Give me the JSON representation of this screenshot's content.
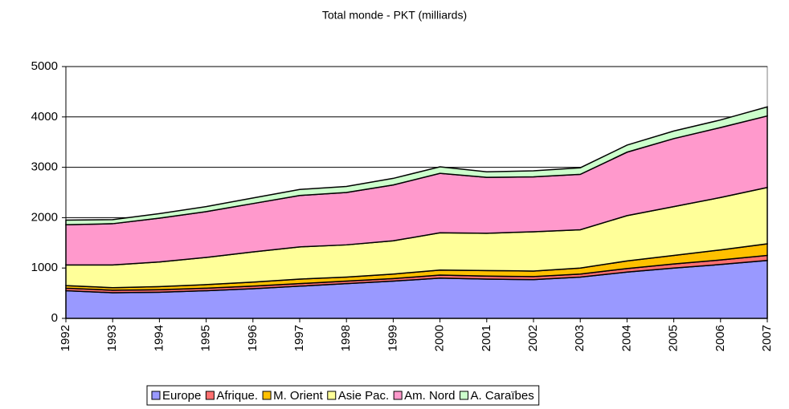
{
  "chart_data": {
    "type": "stacked_area",
    "title": "Total monde - PKT (milliards)",
    "categories": [
      "1992",
      "1993",
      "1994",
      "1995",
      "1996",
      "1997",
      "1998",
      "1999",
      "2000",
      "2001",
      "2002",
      "2003",
      "2004",
      "2005",
      "2006",
      "2007"
    ],
    "series": [
      {
        "name": "Europe",
        "color": "#9999ff",
        "values": [
          550,
          510,
          520,
          550,
          590,
          640,
          690,
          740,
          800,
          780,
          770,
          820,
          920,
          1000,
          1070,
          1150
        ]
      },
      {
        "name": "Afrique.",
        "color": "#ff7070",
        "values": [
          50,
          50,
          50,
          50,
          50,
          50,
          50,
          50,
          60,
          60,
          60,
          60,
          70,
          80,
          90,
          100
        ]
      },
      {
        "name": "M. Orient",
        "color": "#ffc000",
        "values": [
          50,
          50,
          60,
          70,
          80,
          90,
          80,
          90,
          100,
          110,
          110,
          120,
          150,
          170,
          200,
          230
        ]
      },
      {
        "name": "Asie Pac.",
        "color": "#ffff99",
        "values": [
          410,
          450,
          490,
          540,
          600,
          640,
          640,
          660,
          740,
          740,
          780,
          760,
          900,
          970,
          1040,
          1120
        ]
      },
      {
        "name": "Am. Nord",
        "color": "#ff99cc",
        "values": [
          800,
          820,
          870,
          910,
          960,
          1020,
          1040,
          1110,
          1180,
          1110,
          1090,
          1100,
          1260,
          1350,
          1390,
          1420
        ]
      },
      {
        "name": "A. Caraïbes",
        "color": "#ccffcc",
        "values": [
          90,
          80,
          90,
          100,
          110,
          120,
          120,
          130,
          130,
          110,
          120,
          130,
          140,
          150,
          150,
          180
        ]
      }
    ],
    "ylim": [
      0,
      5000
    ],
    "yticks": [
      0,
      1000,
      2000,
      3000,
      4000,
      5000
    ],
    "grid": true,
    "legend": "bottom"
  }
}
